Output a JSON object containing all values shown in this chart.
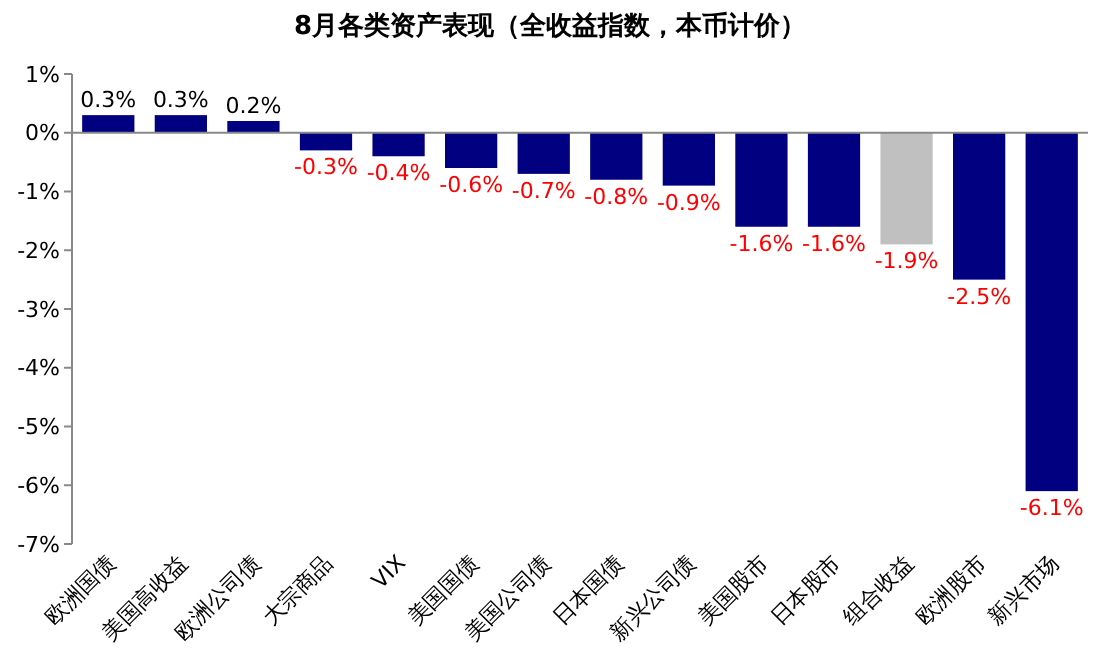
{
  "chart_data": {
    "type": "bar",
    "title": "8月各类资产表现（全收益指数，本币计价）",
    "categories": [
      "欧洲国债",
      "美国高收益",
      "欧洲公司债",
      "大宗商品",
      "VIX",
      "美国国债",
      "美国公司债",
      "日本国债",
      "新兴公司债",
      "美国股市",
      "日本股市",
      "组合收益",
      "欧洲股市",
      "新兴市场"
    ],
    "values": [
      0.3,
      0.3,
      0.2,
      -0.3,
      -0.4,
      -0.6,
      -0.7,
      -0.8,
      -0.9,
      -1.6,
      -1.6,
      -1.9,
      -2.5,
      -6.1
    ],
    "colors": [
      "#000080",
      "#000080",
      "#000080",
      "#000080",
      "#000080",
      "#000080",
      "#000080",
      "#000080",
      "#000080",
      "#000080",
      "#000080",
      "#c0c0c0",
      "#000080",
      "#000080"
    ],
    "ylim": [
      -7,
      1
    ],
    "yticks": [
      {
        "value": 1,
        "label": "1%"
      },
      {
        "value": 0,
        "label": "0%"
      },
      {
        "value": -1,
        "label": "-1%"
      },
      {
        "value": -2,
        "label": "-2%"
      },
      {
        "value": -3,
        "label": "-3%"
      },
      {
        "value": -4,
        "label": "-4%"
      },
      {
        "value": -5,
        "label": "-5%"
      },
      {
        "value": -6,
        "label": "-6%"
      },
      {
        "value": -7,
        "label": "-7%"
      }
    ],
    "value_labels": [
      "0.3%",
      "0.3%",
      "0.2%",
      "-0.3%",
      "-0.4%",
      "-0.6%",
      "-0.7%",
      "-0.8%",
      "-0.9%",
      "-1.6%",
      "-1.6%",
      "-1.9%",
      "-2.5%",
      "-6.1%"
    ]
  }
}
